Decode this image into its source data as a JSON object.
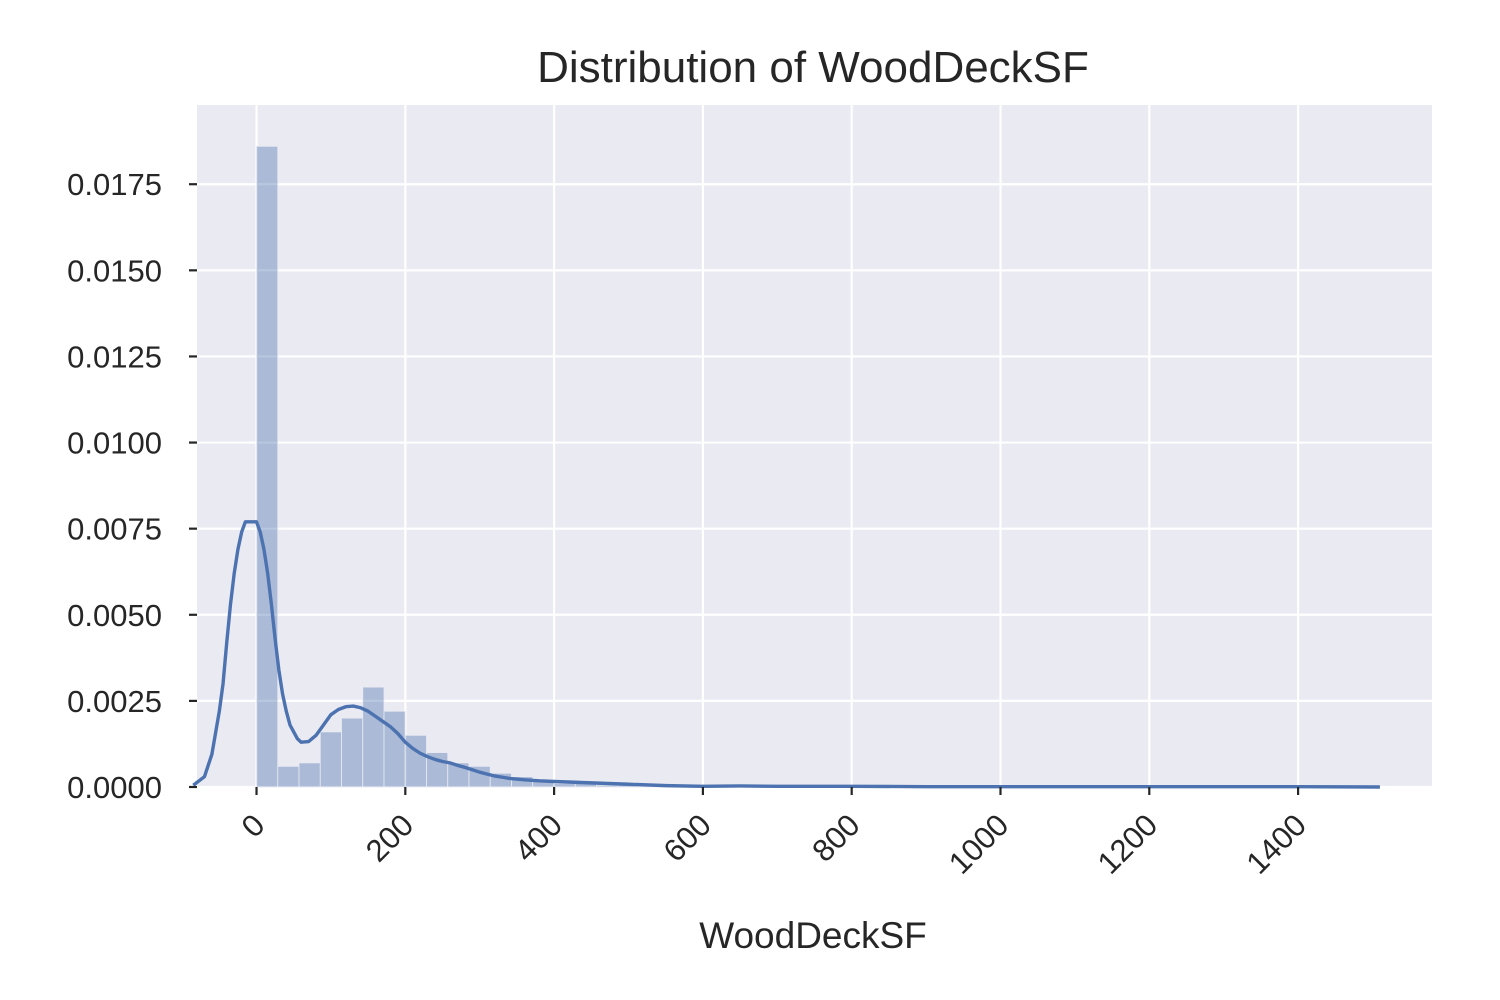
{
  "chart_data": {
    "type": "histogram_kde",
    "title": "Distribution of WoodDeckSF",
    "xlabel": "WoodDeckSF",
    "ylabel": "",
    "xlim": [
      -80,
      1580
    ],
    "ylim": [
      0,
      0.0198
    ],
    "xticks": [
      0,
      200,
      400,
      600,
      800,
      1000,
      1200,
      1400
    ],
    "xtick_labels": [
      "0",
      "200",
      "400",
      "600",
      "800",
      "1000",
      "1200",
      "1400"
    ],
    "xtick_rotation": -45,
    "yticks": [
      0,
      0.0025,
      0.005,
      0.0075,
      0.01,
      0.0125,
      0.015,
      0.0175
    ],
    "ytick_labels": [
      "0.0000",
      "0.0025",
      "0.0050",
      "0.0075",
      "0.0100",
      "0.0125",
      "0.0150",
      "0.0175"
    ],
    "grid": true,
    "background_color": "#eaeaf2",
    "series_color": "#4c72b0",
    "histogram": {
      "bin_width": 28.56,
      "bins_start": 0,
      "densities": [
        0.0186,
        0.0006,
        0.0007,
        0.0016,
        0.002,
        0.0029,
        0.0022,
        0.0015,
        0.001,
        0.0007,
        0.0006,
        0.0004,
        0.0003,
        0.0002,
        0.0001,
        0.0001,
        5e-05,
        5e-05,
        4e-05,
        3e-05,
        2e-05,
        2e-05,
        2e-05,
        1e-05,
        2e-05,
        1e-05,
        1e-05,
        1e-05,
        1e-05,
        5e-06,
        5e-06,
        5e-06,
        5e-06,
        5e-06,
        5e-06,
        5e-06,
        5e-06,
        5e-06,
        5e-06,
        5e-06,
        5e-06,
        5e-06,
        5e-06,
        5e-06,
        5e-06,
        5e-06,
        5e-06,
        5e-06,
        5e-06,
        5e-06
      ]
    },
    "kde": {
      "x": [
        -85,
        -70,
        -60,
        -50,
        -45,
        -40,
        -35,
        -30,
        -25,
        -20,
        -15,
        -10,
        -5,
        0,
        5,
        10,
        15,
        20,
        25,
        30,
        35,
        40,
        45,
        50,
        55,
        60,
        70,
        80,
        90,
        100,
        110,
        120,
        130,
        140,
        150,
        160,
        170,
        180,
        190,
        200,
        210,
        220,
        230,
        240,
        250,
        260,
        270,
        280,
        290,
        300,
        320,
        340,
        360,
        380,
        400,
        450,
        500,
        550,
        600,
        650,
        700,
        800,
        900,
        1000,
        1100,
        1200,
        1300,
        1400,
        1510
      ],
      "y": [
        5e-05,
        0.0003,
        0.00095,
        0.0022,
        0.003,
        0.0042,
        0.0053,
        0.0062,
        0.0069,
        0.0074,
        0.0077,
        0.0077,
        0.0077,
        0.0077,
        0.0074,
        0.0069,
        0.0062,
        0.0053,
        0.0043,
        0.0034,
        0.0027,
        0.0022,
        0.0018,
        0.0016,
        0.0014,
        0.0013,
        0.00132,
        0.0015,
        0.0018,
        0.0021,
        0.00225,
        0.00233,
        0.00235,
        0.0023,
        0.0022,
        0.00205,
        0.0019,
        0.00175,
        0.00155,
        0.0013,
        0.00112,
        0.00098,
        0.00088,
        0.0008,
        0.00074,
        0.0007,
        0.00063,
        0.00057,
        0.0005,
        0.00043,
        0.00032,
        0.00025,
        0.00021,
        0.00018,
        0.00016,
        0.00012,
        8e-05,
        4e-05,
        2e-05,
        3e-05,
        2e-05,
        2e-05,
        1e-05,
        1e-05,
        1e-05,
        1e-05,
        1e-05,
        1e-05,
        0.0
      ]
    }
  }
}
